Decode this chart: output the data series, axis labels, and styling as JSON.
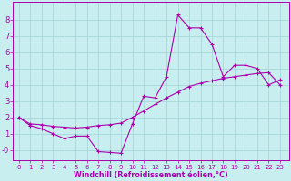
{
  "xlabel": "Windchill (Refroidissement éolien,°C)",
  "background_color": "#c8eef0",
  "grid_color": "#a8d8da",
  "line_color": "#aa00aa",
  "x_ticks": [
    0,
    1,
    2,
    3,
    4,
    5,
    6,
    7,
    8,
    9,
    10,
    11,
    12,
    13,
    14,
    15,
    16,
    17,
    18,
    19,
    20,
    21,
    22,
    23
  ],
  "y_ticks": [
    0,
    1,
    2,
    3,
    4,
    5,
    6,
    7,
    8
  ],
  "ylim": [
    -0.65,
    9.1
  ],
  "xlim": [
    -0.5,
    23.8
  ],
  "line1_x": [
    0,
    1,
    2,
    3,
    4,
    5,
    6,
    7,
    8,
    9,
    10,
    11,
    12,
    13,
    14,
    15,
    16,
    17,
    18,
    19,
    20,
    21,
    22,
    23
  ],
  "line1_y": [
    2.0,
    1.5,
    1.3,
    1.0,
    0.7,
    0.85,
    0.85,
    -0.1,
    -0.15,
    -0.2,
    1.6,
    3.3,
    3.2,
    4.5,
    8.3,
    7.5,
    7.5,
    6.5,
    4.5,
    5.2,
    5.2,
    5.0,
    4.0,
    4.3
  ],
  "line2_x": [
    0,
    1,
    2,
    3,
    4,
    5,
    6,
    7,
    8,
    9,
    10,
    11,
    12,
    13,
    14,
    15,
    16,
    17,
    18,
    19,
    20,
    21,
    22,
    23
  ],
  "line2_y": [
    2.0,
    1.6,
    1.55,
    1.45,
    1.4,
    1.35,
    1.4,
    1.5,
    1.55,
    1.65,
    2.0,
    2.4,
    2.8,
    3.2,
    3.55,
    3.9,
    4.1,
    4.25,
    4.4,
    4.5,
    4.6,
    4.7,
    4.75,
    4.0
  ],
  "xlabel_fontsize": 5.8,
  "ytick_fontsize": 6.0,
  "xtick_fontsize": 5.0
}
